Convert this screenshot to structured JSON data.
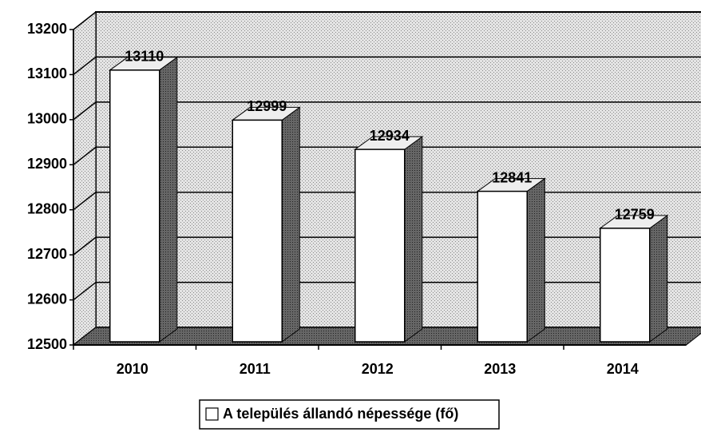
{
  "chart_data": {
    "type": "bar3d",
    "categories": [
      "2010",
      "2011",
      "2012",
      "2013",
      "2014"
    ],
    "series": [
      {
        "name": "A település állandó népessége (fő)",
        "color": "#ffffff",
        "values": [
          13110,
          12999,
          12934,
          12841,
          12759
        ]
      }
    ],
    "ylim": [
      12500,
      13200
    ],
    "yticks": [
      12500,
      12600,
      12700,
      12800,
      12900,
      13000,
      13100,
      13200
    ],
    "grid": true,
    "legend": "bottom"
  }
}
